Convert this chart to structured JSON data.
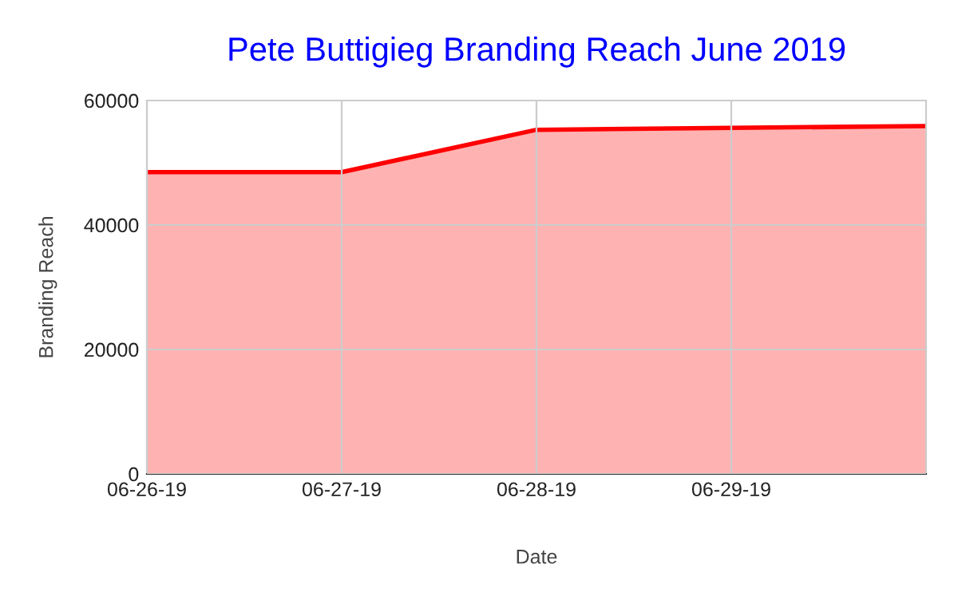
{
  "chart_data": {
    "type": "area",
    "title": "Pete Buttigieg Branding Reach June 2019",
    "xlabel": "Date",
    "ylabel": "Branding Reach",
    "x": [
      "2019-06-26",
      "2019-06-27",
      "2019-06-28",
      "2019-06-29",
      "2019-06-30"
    ],
    "series": [
      {
        "color": "#ff0000",
        "values": [
          48500,
          48500,
          55300,
          55600,
          55900
        ]
      }
    ],
    "xlim": [
      "2019-06-26",
      "2019-06-30"
    ],
    "xticks": [
      {
        "value": "2019-06-26",
        "label": "06-26-19"
      },
      {
        "value": "2019-06-27",
        "label": "06-27-19"
      },
      {
        "value": "2019-06-28",
        "label": "06-28-19"
      },
      {
        "value": "2019-06-29",
        "label": "06-29-19"
      }
    ],
    "ylim": [
      0,
      60000
    ],
    "yticks": [
      0,
      20000,
      40000,
      60000
    ],
    "grid": true,
    "legend": false
  }
}
